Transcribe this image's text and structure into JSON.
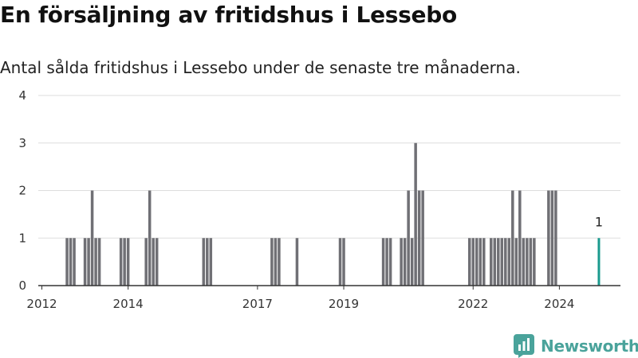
{
  "title": "En försäljning av fritidshus i Lessebo",
  "subtitle": "Antal sålda fritidshus i Lessebo under de senaste tre månaderna.",
  "brand": {
    "name": "Newsworthy",
    "icon": "newsworthy-logo-icon"
  },
  "colors": {
    "bar": "#707075",
    "highlight": "#1a9a8e",
    "grid": "#dddddd",
    "brand": "#4aa39b"
  },
  "chart_data": {
    "type": "bar",
    "title": "En försäljning av fritidshus i Lessebo",
    "xlabel": "",
    "ylabel": "",
    "ylim": [
      0,
      4
    ],
    "yticks": [
      0,
      1,
      2,
      3,
      4
    ],
    "xticks": [
      "2012",
      "2014",
      "2017",
      "2019",
      "2022",
      "2024"
    ],
    "grid": true,
    "x": [
      "2012-08",
      "2012-09",
      "2012-10",
      "2013-01",
      "2013-02",
      "2013-03",
      "2013-04",
      "2013-05",
      "2013-11",
      "2013-12",
      "2014-01",
      "2014-06",
      "2014-07",
      "2014-08",
      "2014-09",
      "2015-10",
      "2015-11",
      "2015-12",
      "2017-05",
      "2017-06",
      "2017-07",
      "2017-12",
      "2018-12",
      "2019-01",
      "2019-12",
      "2020-01",
      "2020-02",
      "2020-05",
      "2020-06",
      "2020-07",
      "2020-08",
      "2020-09",
      "2020-10",
      "2020-11",
      "2021-12",
      "2022-01",
      "2022-02",
      "2022-03",
      "2022-04",
      "2022-06",
      "2022-07",
      "2022-08",
      "2022-09",
      "2022-10",
      "2022-11",
      "2022-12",
      "2023-01",
      "2023-02",
      "2023-03",
      "2023-04",
      "2023-05",
      "2023-06",
      "2023-10",
      "2023-11",
      "2023-12",
      "2024-12"
    ],
    "values": [
      1,
      1,
      1,
      1,
      1,
      2,
      1,
      1,
      1,
      1,
      1,
      1,
      2,
      1,
      1,
      1,
      1,
      1,
      1,
      1,
      1,
      1,
      1,
      1,
      1,
      1,
      1,
      1,
      1,
      2,
      1,
      3,
      2,
      2,
      1,
      1,
      1,
      1,
      1,
      1,
      1,
      1,
      1,
      1,
      1,
      2,
      1,
      2,
      1,
      1,
      1,
      1,
      2,
      2,
      2,
      1
    ],
    "highlight": "2024-12",
    "annotations": [
      {
        "x": "2024-12",
        "text": "1"
      }
    ]
  }
}
